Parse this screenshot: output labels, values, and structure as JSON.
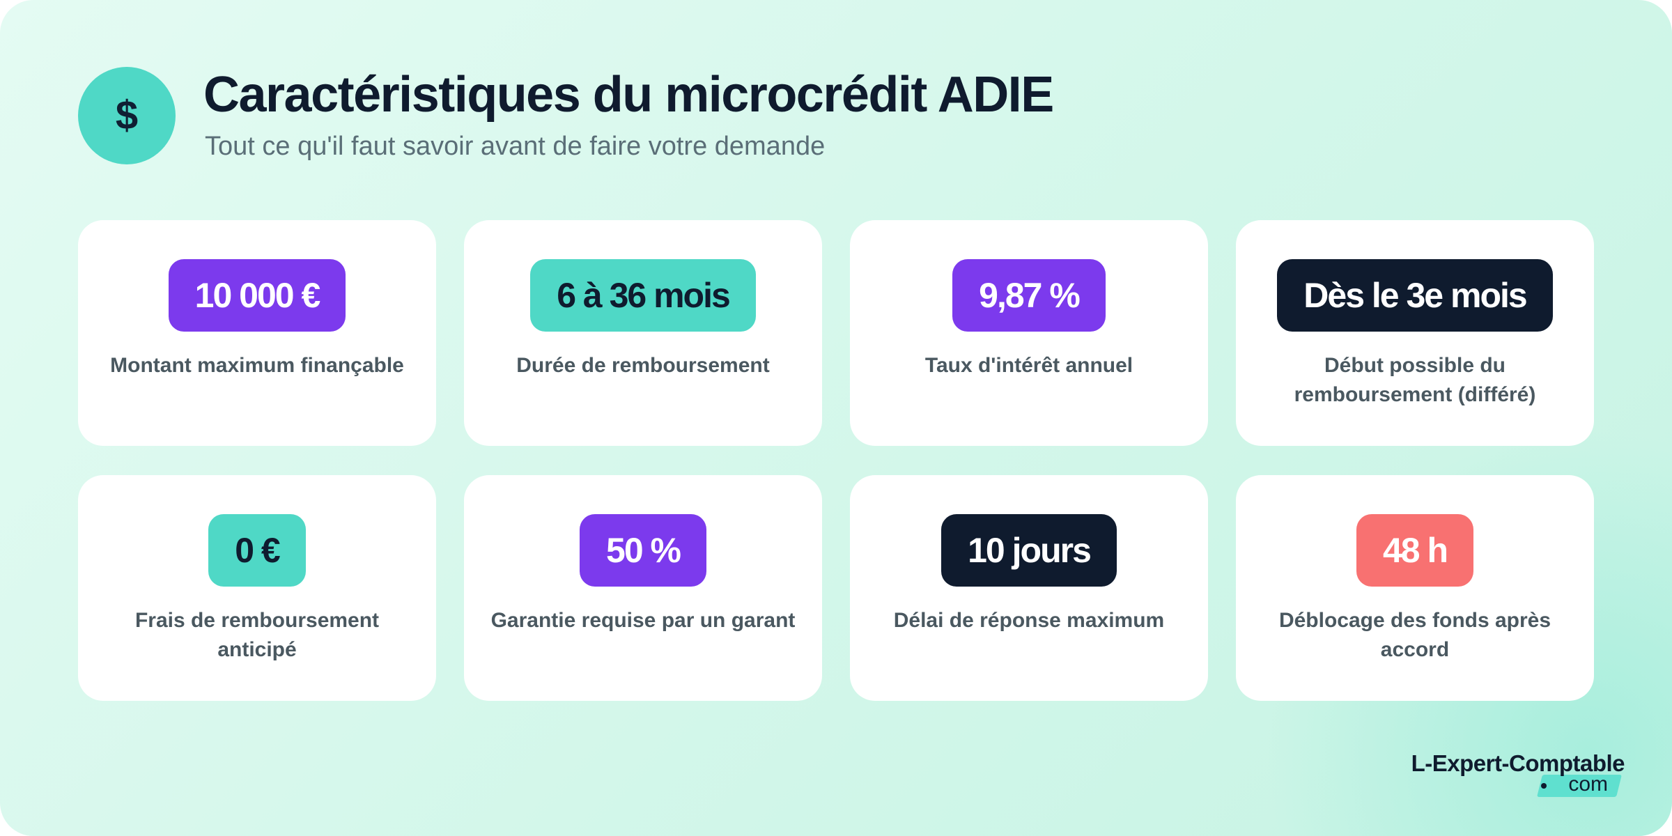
{
  "header": {
    "icon_glyph": "$",
    "icon_name": "dollar-icon",
    "title": "Caractéristiques du microcrédit ADIE",
    "subtitle": "Tout ce qu'il faut savoir avant de faire votre demande"
  },
  "cards": [
    {
      "value": "10 000 €",
      "description": "Montant maximum finançable",
      "color": "#7c3aed"
    },
    {
      "value": "6 à 36 mois",
      "description": "Durée de remboursement",
      "color": "#4fd8c6"
    },
    {
      "value": "9,87 %",
      "description": "Taux d'intérêt annuel",
      "color": "#7c3aed"
    },
    {
      "value": "Dès le 3e mois",
      "description": "Début possible du remboursement (différé)",
      "color": "#0f1b2e"
    },
    {
      "value": "0 €",
      "description": "Frais de remboursement anticipé",
      "color": "#4fd8c6"
    },
    {
      "value": "50 %",
      "description": "Garantie requise par un garant",
      "color": "#7c3aed"
    },
    {
      "value": "10 jours",
      "description": "Délai de réponse maximum",
      "color": "#0f1b2e"
    },
    {
      "value": "48 h",
      "description": "Déblocage des fonds après accord",
      "color": "#f87171"
    }
  ],
  "brand": {
    "name": "L-Expert-Comptable",
    "suffix": "com",
    "accent": "#5fe0cf"
  },
  "colors": {
    "purple": "#7c3aed",
    "teal": "#4fd8c6",
    "navy": "#0f1b2e",
    "coral": "#f87171"
  }
}
